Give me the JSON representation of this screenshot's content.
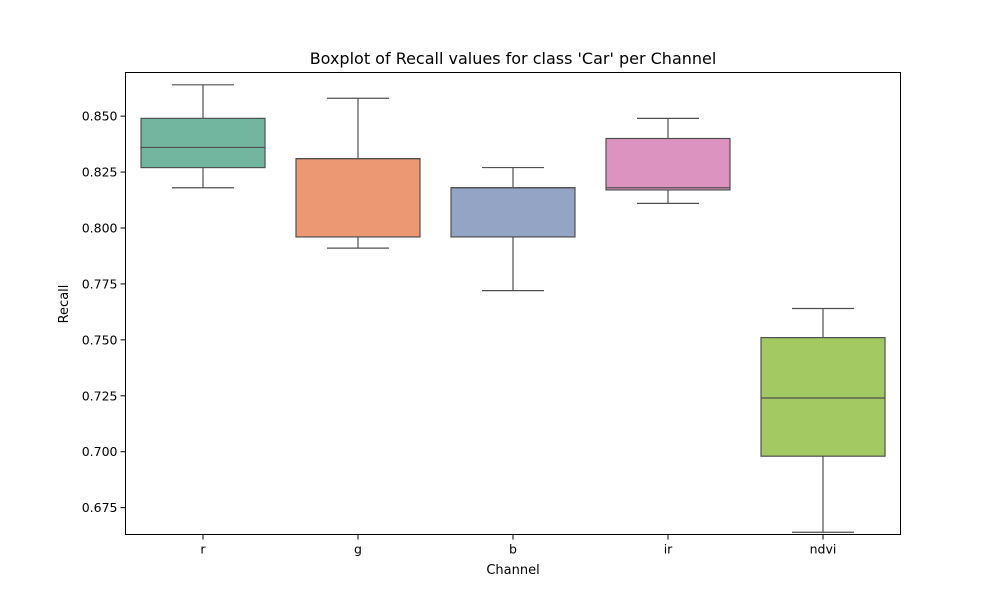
{
  "chart_data": {
    "type": "boxplot",
    "title": "Boxplot of Recall values for class 'Car' per Channel",
    "xlabel": "Channel",
    "ylabel": "Recall",
    "ylim": [
      0.663,
      0.8695
    ],
    "yticks": [
      "0.675",
      "0.700",
      "0.725",
      "0.750",
      "0.775",
      "0.800",
      "0.825",
      "0.850"
    ],
    "grid": false,
    "legend": "none",
    "categories": [
      "r",
      "g",
      "b",
      "ir",
      "ndvi"
    ],
    "boxes": [
      {
        "category": "r",
        "whisker_low": 0.818,
        "q1": 0.827,
        "median": 0.836,
        "q3": 0.849,
        "whisker_high": 0.864,
        "color": "#72b6a0"
      },
      {
        "category": "g",
        "whisker_low": 0.791,
        "q1": 0.796,
        "median": 0.831,
        "q3": 0.831,
        "whisker_high": 0.858,
        "color": "#eb9873"
      },
      {
        "category": "b",
        "whisker_low": 0.772,
        "q1": 0.796,
        "median": 0.818,
        "q3": 0.818,
        "whisker_high": 0.827,
        "color": "#94a4c5"
      },
      {
        "category": "ir",
        "whisker_low": 0.811,
        "q1": 0.817,
        "median": 0.818,
        "q3": 0.84,
        "whisker_high": 0.849,
        "color": "#dc93c0"
      },
      {
        "category": "ndvi",
        "whisker_low": 0.664,
        "q1": 0.698,
        "median": 0.724,
        "q3": 0.751,
        "whisker_high": 0.764,
        "color": "#a2c962"
      }
    ],
    "line_color": "#505050"
  }
}
